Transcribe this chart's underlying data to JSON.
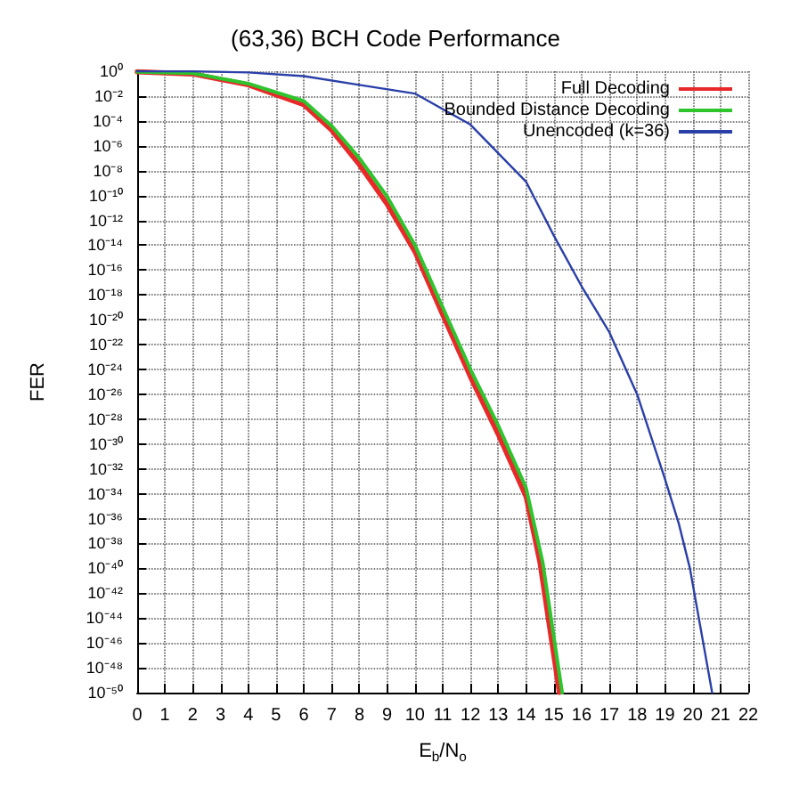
{
  "chart_data": {
    "type": "line",
    "title": "(63,36) BCH Code Performance",
    "xlabel": "E$_{b}$/N$_{o}$",
    "ylabel": "FER",
    "log": "y",
    "grid": true,
    "legend": "top right",
    "line_style": "solid",
    "marker": "none",
    "xlim": [
      0,
      22
    ],
    "xticks": [
      0,
      1,
      2,
      3,
      4,
      5,
      6,
      7,
      8,
      9,
      10,
      11,
      12,
      13,
      14,
      15,
      16,
      17,
      18,
      19,
      20,
      21,
      22
    ],
    "ylim": [
      1e-50,
      1
    ],
    "yticks": [
      {
        "value": 1,
        "label": "10⁰"
      },
      {
        "value": 0.01,
        "label": "10⁻²"
      },
      {
        "value": 0.0001,
        "label": "10⁻⁴"
      },
      {
        "value": 1e-06,
        "label": "10⁻⁶"
      },
      {
        "value": 1e-08,
        "label": "10⁻⁸"
      },
      {
        "value": 1e-10,
        "label": "10⁻¹⁰"
      },
      {
        "value": 1e-12,
        "label": "10⁻¹²"
      },
      {
        "value": 1e-14,
        "label": "10⁻¹⁴"
      },
      {
        "value": 1e-16,
        "label": "10⁻¹⁶"
      },
      {
        "value": 1e-18,
        "label": "10⁻¹⁸"
      },
      {
        "value": 1e-20,
        "label": "10⁻²⁰"
      },
      {
        "value": 1e-22,
        "label": "10⁻²²"
      },
      {
        "value": 1e-24,
        "label": "10⁻²⁴"
      },
      {
        "value": 1e-26,
        "label": "10⁻²⁶"
      },
      {
        "value": 1e-28,
        "label": "10⁻²⁸"
      },
      {
        "value": 1e-30,
        "label": "10⁻³⁰"
      },
      {
        "value": 1e-32,
        "label": "10⁻³²"
      },
      {
        "value": 1e-34,
        "label": "10⁻³⁴"
      },
      {
        "value": 1e-36,
        "label": "10⁻³⁶"
      },
      {
        "value": 1e-38,
        "label": "10⁻³⁸"
      },
      {
        "value": 1e-40,
        "label": "10⁻⁴⁰"
      },
      {
        "value": 1e-42,
        "label": "10⁻⁴²"
      },
      {
        "value": 1e-44,
        "label": "10⁻⁴⁴"
      },
      {
        "value": 1e-46,
        "label": "10⁻⁴⁶"
      },
      {
        "value": 1e-48,
        "label": "10⁻⁴⁸"
      },
      {
        "value": 1e-50,
        "label": "10⁻⁵⁰"
      }
    ],
    "series": [
      {
        "name": "Full Decoding",
        "color": "#e8292a",
        "x": [
          0,
          2,
          4,
          6,
          7,
          8,
          9,
          10,
          11,
          12,
          13,
          14,
          14.5,
          15.2
        ],
        "values": [
          0.9,
          0.6,
          0.08,
          0.002,
          1.8e-05,
          3e-08,
          2e-11,
          3e-15,
          2.5e-20,
          2.5e-25,
          6e-30,
          6e-35,
          3e-40,
          1e-50
        ]
      },
      {
        "name": "Bounded Distance Decoding",
        "color": "#2ec42e",
        "x": [
          0,
          2,
          4,
          6,
          7,
          8,
          9,
          10,
          11,
          12,
          13,
          14,
          14.6,
          15.3
        ],
        "values": [
          0.9,
          0.7,
          0.1,
          0.004,
          4e-05,
          1e-07,
          8e-11,
          1e-14,
          1e-19,
          1e-24,
          3e-29,
          3e-34,
          3e-40,
          1e-50
        ]
      },
      {
        "name": "Unencoded (k=36)",
        "color": "#2a3fa8",
        "x": [
          0,
          2,
          4,
          6,
          8,
          10,
          12,
          14,
          15,
          16,
          17,
          18,
          19,
          19.5,
          19.9,
          20.7
        ],
        "values": [
          1,
          0.98,
          0.8,
          0.4,
          0.08,
          0.016,
          5e-05,
          1.3e-09,
          6e-14,
          5e-18,
          1e-21,
          1e-26,
          1.6e-33,
          4e-37,
          1e-40,
          1e-50
        ]
      }
    ]
  }
}
